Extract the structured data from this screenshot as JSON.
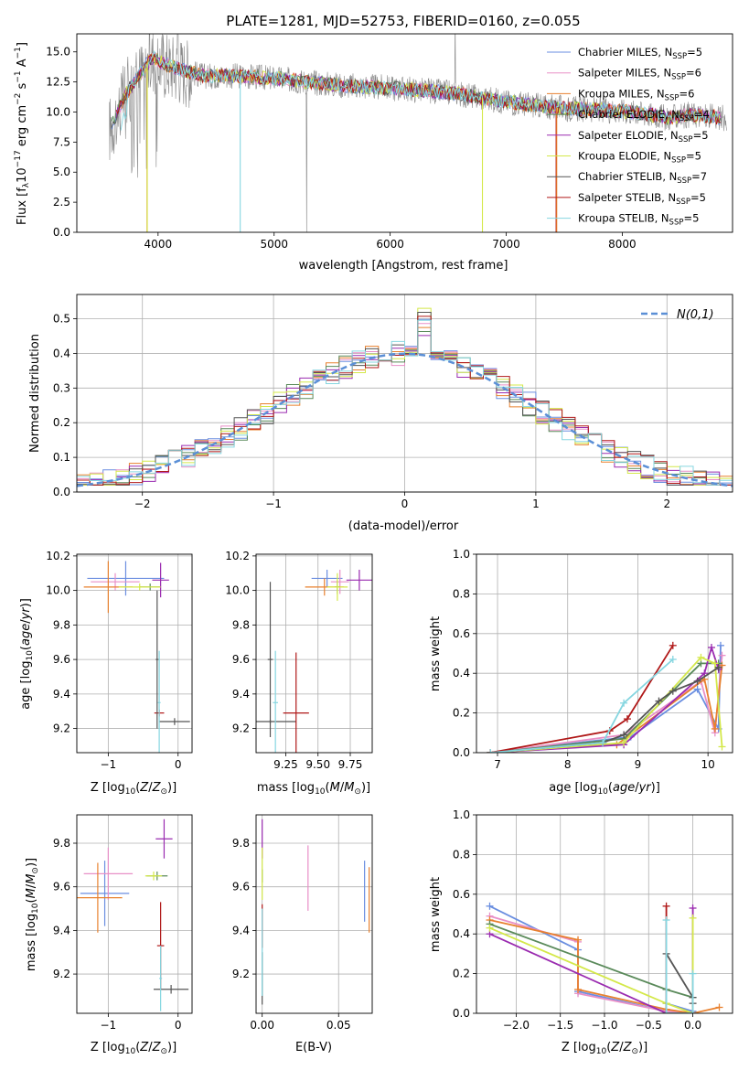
{
  "figure_title": "PLATE=1281, MJD=52753, FIBERID=0160, z=0.055",
  "colors": {
    "Chabrier MILES": "#6a8ee0",
    "Salpeter MILES": "#e88fc7",
    "Kroupa MILES": "#e8812f",
    "Chabrier ELODIE": "#5a8a5a",
    "Salpeter ELODIE": "#9a2bb0",
    "Kroupa ELODIE": "#d4e84a",
    "Chabrier STELIB": "#555555",
    "Salpeter STELIB": "#b01818",
    "Kroupa STELIB": "#86d6e0",
    "data": "#888888",
    "gaussian": "#5b8fd6"
  },
  "chart_data": [
    {
      "id": "spectrum",
      "type": "line",
      "title": "PLATE=1281, MJD=52753, FIBERID=0160, z=0.055",
      "xlabel": "wavelength [Angstrom, rest frame]",
      "ylabel": "Flux [f_λ 10^-17 erg cm^-2 s^-1 A^-1]",
      "xlim": [
        3300,
        8950
      ],
      "ylim": [
        0,
        16.5
      ],
      "xticks": [
        4000,
        5000,
        6000,
        7000,
        8000
      ],
      "yticks": [
        "0.0",
        "2.5",
        "5.0",
        "7.5",
        "10.0",
        "12.5",
        "15.0"
      ],
      "grid": false,
      "legend_position": "top-right",
      "series": [
        {
          "name": "Chabrier MILES, N_SSP=5"
        },
        {
          "name": "Salpeter MILES, N_SSP=6"
        },
        {
          "name": "Kroupa MILES, N_SSP=6"
        },
        {
          "name": "Chabrier ELODIE, N_SSP=4"
        },
        {
          "name": "Salpeter ELODIE, N_SSP=5"
        },
        {
          "name": "Kroupa ELODIE, N_SSP=5"
        },
        {
          "name": "Chabrier STELIB, N_SSP=7"
        },
        {
          "name": "Salpeter STELIB, N_SSP=5"
        },
        {
          "name": "Kroupa STELIB, N_SSP=5"
        }
      ],
      "model_continuum": {
        "x": [
          3580,
          3650,
          3720,
          3800,
          3900,
          3960,
          4050,
          4200,
          4400,
          4700,
          5000,
          5300,
          5600,
          6000,
          6300,
          6600,
          6900,
          7200,
          7500,
          7800,
          8100,
          8400,
          8600,
          8750,
          8900
        ],
        "y": [
          8.5,
          10.0,
          11.5,
          12.5,
          14.0,
          14.5,
          14.0,
          13.5,
          13.0,
          13.0,
          12.8,
          12.5,
          12.2,
          12.0,
          11.8,
          11.5,
          11.0,
          10.6,
          10.3,
          10.2,
          10.0,
          9.5,
          9.8,
          9.6,
          9.5
        ]
      }
    },
    {
      "id": "residuals",
      "type": "histogram",
      "xlabel": "(data-model)/error",
      "ylabel": "Normed distribution",
      "xlim": [
        -2.5,
        2.5
      ],
      "ylim": [
        0,
        0.57
      ],
      "xticks": [
        "−2",
        "−1",
        "0",
        "1",
        "2"
      ],
      "yticks": [
        "0.0",
        "0.1",
        "0.2",
        "0.3",
        "0.4",
        "0.5"
      ],
      "grid": true,
      "legend": "N(0,1)",
      "legend_position": "top-right",
      "bin_width": 0.1,
      "reference_curve": "N(0,1)"
    },
    {
      "id": "age-vs-Z",
      "type": "errorbar",
      "xlabel": "Z [log10(Z/Z⊙)]",
      "ylabel": "age [log10(age/yr)]",
      "xlim": [
        -1.45,
        0.2
      ],
      "ylim": [
        9.06,
        10.21
      ],
      "xticks": [
        "−1",
        "0"
      ],
      "yticks": [
        "9.2",
        "9.4",
        "9.6",
        "9.8",
        "10.0",
        "10.2"
      ],
      "grid": true,
      "points": [
        {
          "series": "Chabrier MILES",
          "x": -0.75,
          "xerr": 0.55,
          "y": 10.07,
          "yerr": 0.1
        },
        {
          "series": "Salpeter MILES",
          "x": -0.9,
          "xerr": 0.35,
          "y": 10.05,
          "yerr": 0.05
        },
        {
          "series": "Kroupa MILES",
          "x": -1.0,
          "xerr": 0.35,
          "y": 10.02,
          "yerr": 0.15
        },
        {
          "series": "Chabrier ELODIE",
          "x": -0.4,
          "xerr": 0.15,
          "y": 10.02,
          "yerr": 0.02
        },
        {
          "series": "Salpeter ELODIE",
          "x": -0.25,
          "xerr": 0.12,
          "y": 10.06,
          "yerr": 0.1
        },
        {
          "series": "Kroupa ELODIE",
          "x": -0.55,
          "xerr": 0.3,
          "y": 10.02,
          "yerr": 0.02
        },
        {
          "series": "Chabrier STELIB",
          "x": -0.05,
          "xerr": 0.22,
          "y": 9.24,
          "yerr": 0.02
        },
        {
          "series": "Salpeter STELIB",
          "x": -0.27,
          "xerr": 0.07,
          "y": 9.29,
          "yerr": 0.02
        },
        {
          "series": "Kroupa STELIB",
          "x": -0.27,
          "xerr": 0.02,
          "y": 9.35,
          "yerr": 0.3
        },
        {
          "series": "Chabrier STELIB",
          "x": -0.3,
          "xerr": 0.02,
          "y": 9.6,
          "yerr": 0.4
        }
      ]
    },
    {
      "id": "age-vs-mass",
      "type": "errorbar",
      "xlabel": "mass [log10(M/M⊙)]",
      "ylabel": "",
      "xlim": [
        9.02,
        9.92
      ],
      "ylim": [
        9.06,
        10.21
      ],
      "xticks": [
        "9.25",
        "9.50",
        "9.75"
      ],
      "yticks": [
        "9.2",
        "9.4",
        "9.6",
        "9.8",
        "10.0",
        "10.2"
      ],
      "grid": true,
      "points": [
        {
          "series": "Chabrier MILES",
          "x": 9.57,
          "xerr": 0.12,
          "y": 10.07,
          "yerr": 0.05
        },
        {
          "series": "Salpeter MILES",
          "x": 9.67,
          "xerr": 0.07,
          "y": 10.05,
          "yerr": 0.07
        },
        {
          "series": "Kroupa MILES",
          "x": 9.55,
          "xerr": 0.15,
          "y": 10.02,
          "yerr": 0.05
        },
        {
          "series": "Chabrier ELODIE",
          "x": 9.65,
          "xerr": 0.02,
          "y": 10.02,
          "yerr": 0.04
        },
        {
          "series": "Salpeter ELODIE",
          "x": 9.82,
          "xerr": 0.1,
          "y": 10.06,
          "yerr": 0.06
        },
        {
          "series": "Kroupa ELODIE",
          "x": 9.65,
          "xerr": 0.08,
          "y": 10.02,
          "yerr": 0.08
        },
        {
          "series": "Chabrier STELIB",
          "x": 9.13,
          "xerr": 0.02,
          "y": 9.6,
          "yerr": 0.45
        },
        {
          "series": "Chabrier STELIB",
          "x": 9.13,
          "xerr": 0.2,
          "y": 9.24,
          "yerr": 0.01
        },
        {
          "series": "Salpeter STELIB",
          "x": 9.33,
          "xerr": 0.1,
          "y": 9.29,
          "yerr": 0.35
        },
        {
          "series": "Kroupa STELIB",
          "x": 9.17,
          "xerr": 0.02,
          "y": 9.35,
          "yerr": 0.3
        }
      ]
    },
    {
      "id": "massweight-vs-age",
      "type": "line",
      "xlabel": "age [log10(age/yr)]",
      "ylabel": "mass weight",
      "xlim": [
        6.7,
        10.35
      ],
      "ylim": [
        0,
        1.0
      ],
      "xticks": [
        "7",
        "8",
        "9",
        "10"
      ],
      "yticks": [
        "0.0",
        "0.2",
        "0.4",
        "0.6",
        "0.8",
        "1.0"
      ],
      "grid": true,
      "series": [
        {
          "color_key": "Chabrier MILES",
          "x": [
            6.9,
            8.9,
            9.85,
            10.15,
            10.18
          ],
          "y": [
            0.0,
            0.08,
            0.32,
            0.12,
            0.54
          ]
        },
        {
          "color_key": "Salpeter MILES",
          "x": [
            6.9,
            8.8,
            9.9,
            10.1,
            10.2
          ],
          "y": [
            0.0,
            0.09,
            0.36,
            0.1,
            0.49
          ]
        },
        {
          "color_key": "Kroupa MILES",
          "x": [
            6.9,
            8.7,
            9.95,
            10.1,
            10.2
          ],
          "y": [
            0.0,
            0.04,
            0.37,
            0.12,
            0.44
          ]
        },
        {
          "color_key": "Chabrier ELODIE",
          "x": [
            6.9,
            8.8,
            9.9,
            10.15
          ],
          "y": [
            0.0,
            0.07,
            0.45,
            0.45
          ]
        },
        {
          "color_key": "Salpeter ELODIE",
          "x": [
            6.9,
            8.8,
            9.95,
            10.05,
            10.15
          ],
          "y": [
            0.0,
            0.04,
            0.4,
            0.53,
            0.42
          ]
        },
        {
          "color_key": "Kroupa ELODIE",
          "x": [
            6.9,
            8.8,
            9.9,
            10.1,
            10.2
          ],
          "y": [
            0.0,
            0.05,
            0.48,
            0.45,
            0.03
          ]
        },
        {
          "color_key": "Chabrier STELIB",
          "x": [
            6.9,
            8.5,
            8.8,
            9.3,
            9.5,
            9.85,
            10.15
          ],
          "y": [
            0.0,
            0.05,
            0.09,
            0.26,
            0.31,
            0.36,
            0.43
          ]
        },
        {
          "color_key": "Salpeter STELIB",
          "x": [
            6.9,
            8.6,
            8.85,
            9.5
          ],
          "y": [
            0.0,
            0.11,
            0.17,
            0.54
          ]
        },
        {
          "color_key": "Kroupa STELIB",
          "x": [
            6.9,
            8.5,
            8.8,
            9.5
          ],
          "y": [
            0.0,
            0.05,
            0.25,
            0.47
          ]
        }
      ]
    },
    {
      "id": "mass-vs-Z",
      "type": "errorbar",
      "xlabel": "Z [log10(Z/Z⊙)]",
      "ylabel": "mass [log10(M/M⊙)]",
      "xlim": [
        -1.45,
        0.2
      ],
      "ylim": [
        9.02,
        9.93
      ],
      "xticks": [
        "−1",
        "0"
      ],
      "yticks": [
        "9.2",
        "9.4",
        "9.6",
        "9.8"
      ],
      "grid": true,
      "points": [
        {
          "series": "Chabrier MILES",
          "x": -1.05,
          "xerr": 0.35,
          "y": 9.57,
          "yerr": 0.15
        },
        {
          "series": "Salpeter MILES",
          "x": -1.0,
          "xerr": 0.35,
          "y": 9.66,
          "yerr": 0.12
        },
        {
          "series": "Kroupa MILES",
          "x": -1.15,
          "xerr": 0.35,
          "y": 9.55,
          "yerr": 0.16
        },
        {
          "series": "Chabrier ELODIE",
          "x": -0.3,
          "xerr": 0.15,
          "y": 9.65,
          "yerr": 0.02
        },
        {
          "series": "Salpeter ELODIE",
          "x": -0.2,
          "xerr": 0.12,
          "y": 9.82,
          "yerr": 0.09
        },
        {
          "series": "Kroupa ELODIE",
          "x": -0.35,
          "xerr": 0.12,
          "y": 9.65,
          "yerr": 0.02
        },
        {
          "series": "Chabrier STELIB",
          "x": -0.1,
          "xerr": 0.25,
          "y": 9.13,
          "yerr": 0.02
        },
        {
          "series": "Salpeter STELIB",
          "x": -0.25,
          "xerr": 0.05,
          "y": 9.33,
          "yerr": 0.2
        },
        {
          "series": "Kroupa STELIB",
          "x": -0.25,
          "xerr": 0.02,
          "y": 9.18,
          "yerr": 0.15
        }
      ]
    },
    {
      "id": "mass-vs-EBV",
      "type": "errorbar",
      "xlabel": "E(B-V)",
      "ylabel": "",
      "xlim": [
        -0.004,
        0.072
      ],
      "ylim": [
        9.02,
        9.93
      ],
      "xticks": [
        "0.00",
        "0.05"
      ],
      "yticks": [
        "9.2",
        "9.4",
        "9.6",
        "9.8"
      ],
      "grid": true,
      "points": [
        {
          "series": "Chabrier MILES",
          "x": 0.067,
          "xerr": 0.0,
          "y": 9.58,
          "yerr": 0.14
        },
        {
          "series": "Salpeter MILES",
          "x": 0.03,
          "xerr": 0.0,
          "y": 9.64,
          "yerr": 0.15
        },
        {
          "series": "Kroupa MILES",
          "x": 0.07,
          "xerr": 0.0,
          "y": 9.54,
          "yerr": 0.15
        },
        {
          "series": "Chabrier ELODIE",
          "x": 0.0,
          "xerr": 0.0,
          "y": 9.65,
          "yerr": 0.03
        },
        {
          "series": "Salpeter ELODIE",
          "x": 0.0,
          "xerr": 0.0,
          "y": 9.82,
          "yerr": 0.09
        },
        {
          "series": "Kroupa ELODIE",
          "x": 0.0,
          "xerr": 0.0,
          "y": 9.66,
          "yerr": 0.12
        },
        {
          "series": "Chabrier STELIB",
          "x": 0.0,
          "xerr": 0.0,
          "y": 9.18,
          "yerr": 0.12
        },
        {
          "series": "Salpeter STELIB",
          "x": 0.0,
          "xerr": 0.0,
          "y": 9.42,
          "yerr": 0.1
        },
        {
          "series": "Kroupa STELIB",
          "x": 0.0,
          "xerr": 0.0,
          "y": 9.3,
          "yerr": 0.2
        }
      ]
    },
    {
      "id": "massweight-vs-Z",
      "type": "line",
      "xlabel": "Z [log10(Z/Z⊙)]",
      "ylabel": "mass weight",
      "xlim": [
        -2.45,
        0.45
      ],
      "ylim": [
        0,
        1.0
      ],
      "xticks": [
        "−2.0",
        "−1.5",
        "−1.0",
        "−0.5",
        "0.0"
      ],
      "yticks": [
        "0.0",
        "0.2",
        "0.4",
        "0.6",
        "0.8",
        "1.0"
      ],
      "grid": true,
      "series": [
        {
          "color_key": "Chabrier MILES",
          "x": [
            -2.3,
            -1.3,
            -1.3,
            -0.3,
            -0.3,
            0.0,
            0.0
          ],
          "y": [
            0.54,
            0.32,
            0.11,
            0.01,
            0.05,
            0.01,
            0.0
          ]
        },
        {
          "color_key": "Salpeter MILES",
          "x": [
            -2.3,
            -1.3,
            -1.3,
            -0.3,
            0.0,
            0.0
          ],
          "y": [
            0.49,
            0.36,
            0.1,
            0.01,
            0.0,
            0.0
          ]
        },
        {
          "color_key": "Kroupa MILES",
          "x": [
            -2.3,
            -1.3,
            -1.3,
            -0.3,
            0.0,
            0.3
          ],
          "y": [
            0.47,
            0.37,
            0.12,
            0.02,
            0.0,
            0.03
          ]
        },
        {
          "color_key": "Chabrier ELODIE",
          "x": [
            -2.3,
            -0.3,
            0.0
          ],
          "y": [
            0.45,
            0.12,
            0.08
          ]
        },
        {
          "color_key": "Salpeter ELODIE",
          "x": [
            -2.3,
            -0.3,
            0.0,
            0.0
          ],
          "y": [
            0.4,
            0.0,
            0.0,
            0.53
          ]
        },
        {
          "color_key": "Kroupa ELODIE",
          "x": [
            -2.3,
            -0.3,
            0.0,
            0.0
          ],
          "y": [
            0.43,
            0.05,
            0.0,
            0.48
          ]
        },
        {
          "color_key": "Chabrier STELIB",
          "x": [
            -0.3,
            0.0,
            0.0
          ],
          "y": [
            0.3,
            0.08,
            0.05
          ]
        },
        {
          "color_key": "Salpeter STELIB",
          "x": [
            -0.3,
            -0.3,
            0.0
          ],
          "y": [
            0.54,
            0.0,
            0.0
          ]
        },
        {
          "color_key": "Kroupa STELIB",
          "x": [
            -0.3,
            -0.3,
            0.0,
            0.0
          ],
          "y": [
            0.47,
            0.0,
            0.0,
            0.2
          ]
        }
      ]
    }
  ]
}
